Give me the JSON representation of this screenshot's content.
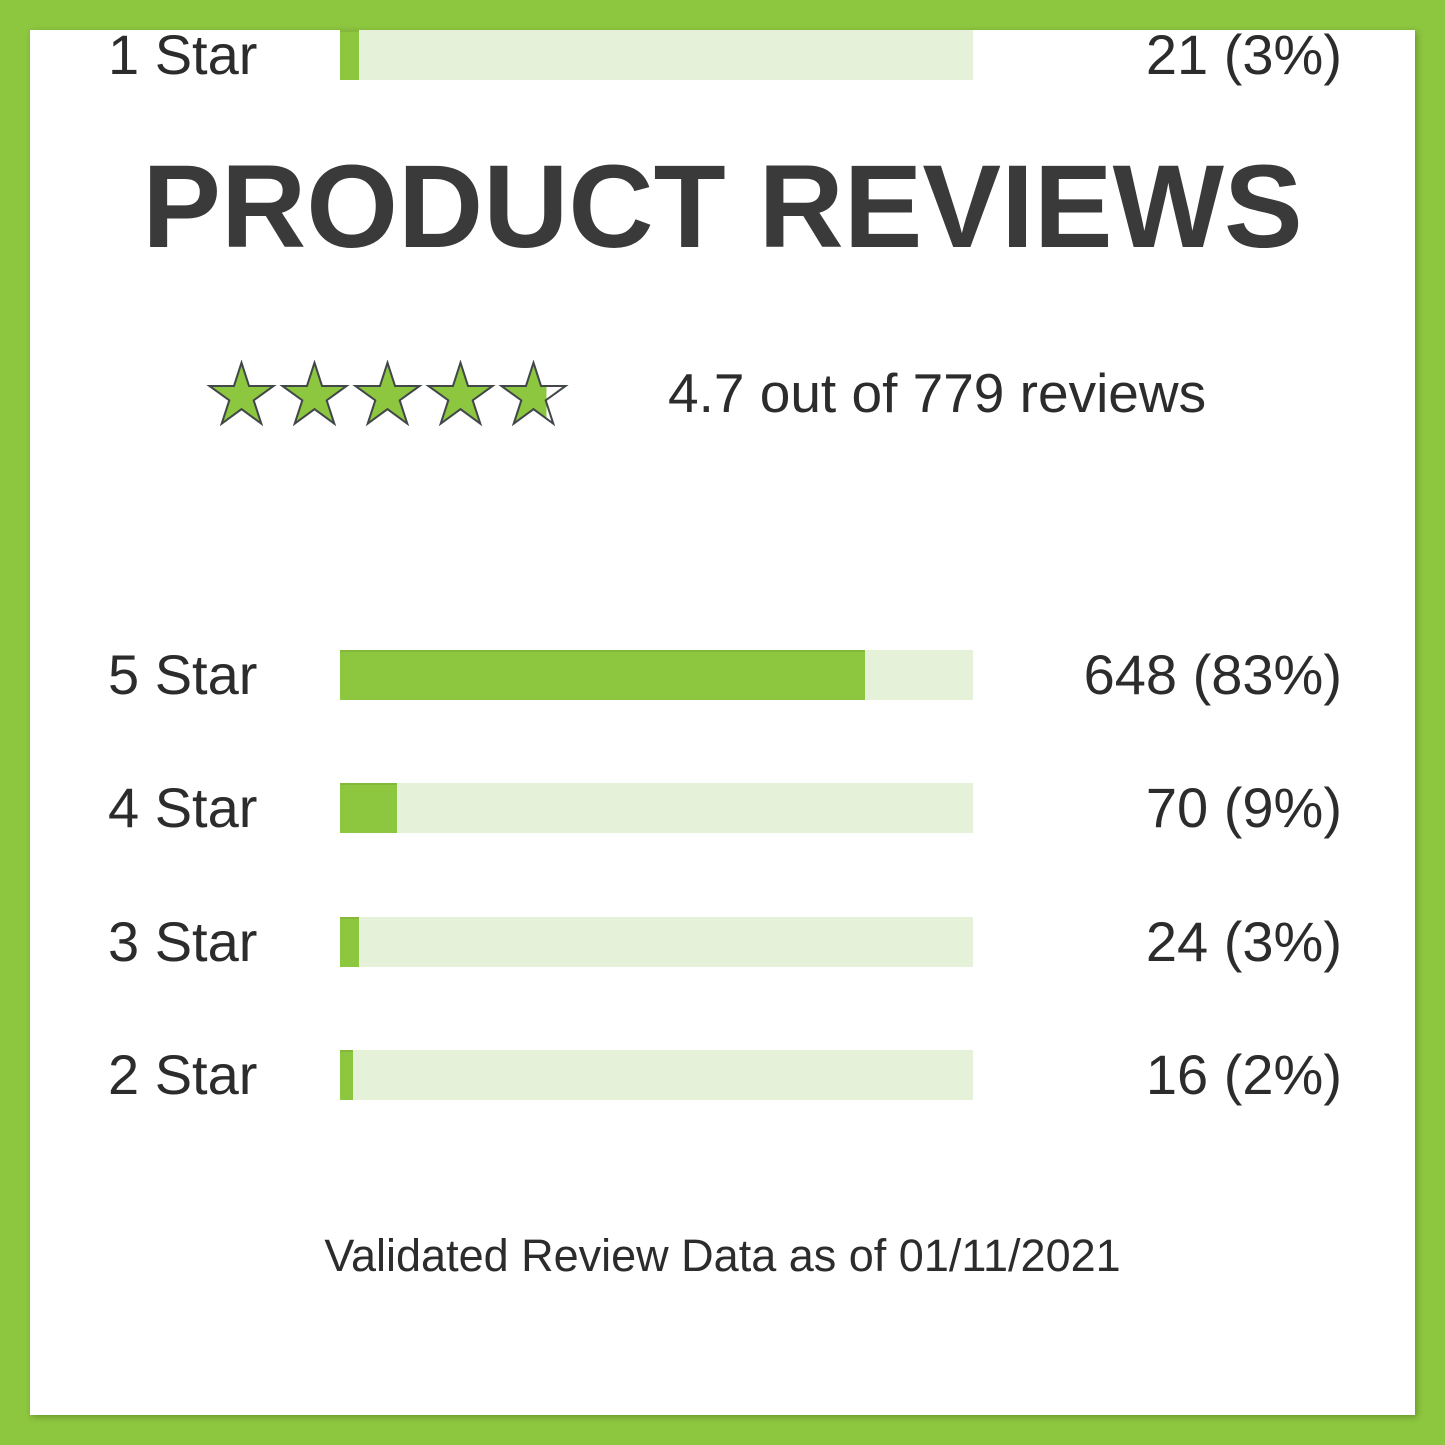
{
  "title": "PRODUCT REVIEWS",
  "summary": {
    "text": "4.7 out of 779 reviews"
  },
  "rows": [
    {
      "label": "5 Star",
      "value_text": "648 (83%)",
      "pct": 83
    },
    {
      "label": "4 Star",
      "value_text": "70 (9%)",
      "pct": 9
    },
    {
      "label": "3 Star",
      "value_text": "24 (3%)",
      "pct": 3
    },
    {
      "label": "2 Star",
      "value_text": "16 (2%)",
      "pct": 2
    },
    {
      "label": "1 Star",
      "value_text": "21 (3%)",
      "pct": 3
    }
  ],
  "footnote": "Validated Review Data as of 01/11/2021",
  "colors": {
    "frame_green": "#8dc63f",
    "bar_fill": "#8dc63f",
    "bar_track": "#e5f2d9",
    "title_text": "#3a3a3a",
    "body_text": "#2c2c2c",
    "star_fill": "#8dc63f",
    "star_outline": "#42474a"
  },
  "chart_data": {
    "type": "bar",
    "orientation": "horizontal",
    "title": "PRODUCT REVIEWS",
    "categories": [
      "5 Star",
      "4 Star",
      "3 Star",
      "2 Star",
      "1 Star"
    ],
    "values": [
      648,
      70,
      24,
      16,
      21
    ],
    "percentages": [
      83,
      9,
      3,
      2,
      3
    ],
    "average_rating": 4.7,
    "total_reviews": 779,
    "xlim": [
      0,
      100
    ],
    "grid": false,
    "legend": false,
    "annotation": "Validated Review Data as of 01/11/2021"
  }
}
